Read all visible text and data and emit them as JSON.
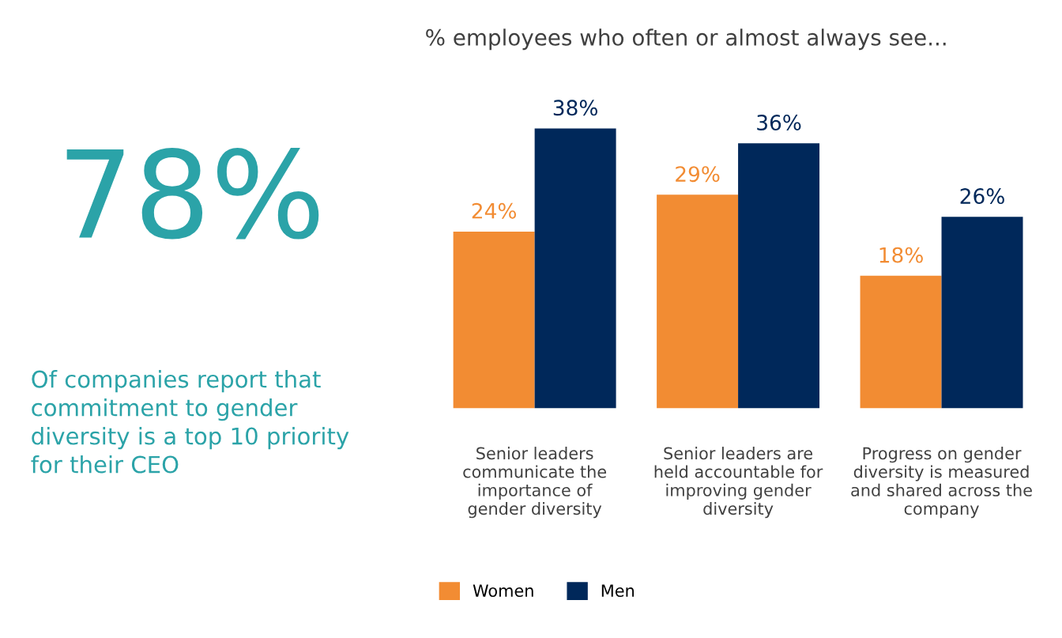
{
  "chart_data": [
    {
      "type": "other",
      "title": "78%",
      "subtitle": "Of companies report that\ncommitment to gender\ndiversity is a top 10 priority\nfor their CEO",
      "color": "#2ba3a8"
    },
    {
      "type": "bar",
      "title": "% employees who often or almost always see...",
      "categories": [
        "Senior leaders\ncommunicate the\nimportance of\ngender diversity",
        "Senior leaders are\nheld accountable for\nimproving gender\ndiversity",
        "Progress on gender\ndiversity is measured\nand shared across the\ncompany"
      ],
      "series": [
        {
          "name": "Women",
          "color": "#f28c33",
          "values": [
            24,
            29,
            18
          ],
          "value_labels": [
            "24%",
            "29%",
            "18%"
          ]
        },
        {
          "name": "Men",
          "color": "#00285a",
          "values": [
            38,
            36,
            26
          ],
          "value_labels": [
            "38%",
            "36%",
            "26%"
          ]
        }
      ],
      "legend": "bottom left",
      "grid": false
    }
  ]
}
